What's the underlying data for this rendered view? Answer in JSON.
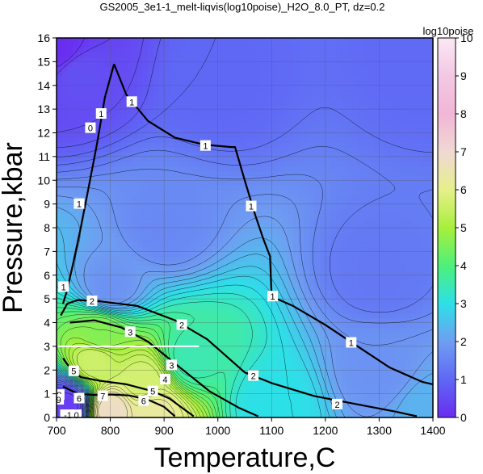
{
  "chart_data": {
    "type": "heatmap",
    "title": "GS2005_3e1-1_melt-liqvis(log10poise)_H2O_8.0_PT, dz=0.2",
    "xlabel": "Temperature,C",
    "ylabel": "Pressure,kbar",
    "xlim": [
      700,
      1400
    ],
    "ylim": [
      0,
      16
    ],
    "x_ticks": [
      "700",
      "800",
      "900",
      "1000",
      "1100",
      "1200",
      "1300",
      "1400"
    ],
    "y_ticks": [
      "0",
      "1",
      "2",
      "3",
      "4",
      "5",
      "6",
      "7",
      "8",
      "9",
      "10",
      "11",
      "12",
      "13",
      "14",
      "15",
      "16"
    ],
    "grid": true,
    "colorbar": {
      "label": "log10poise",
      "range": [
        0,
        10
      ],
      "ticks": [
        "0",
        "1",
        "2",
        "3",
        "4",
        "5",
        "6",
        "7",
        "8",
        "9",
        "10"
      ],
      "colors": [
        "#6a2cf0",
        "#5f68f5",
        "#6f9ef2",
        "#2de0e8",
        "#4ef07a",
        "#a8ef3c",
        "#e6f08a",
        "#f0d8d4",
        "#f2b6d6",
        "#f3c8e4",
        "#fbe8f4"
      ]
    },
    "contour_labels": [
      {
        "text": "0",
        "x": 763,
        "y": 12.2
      },
      {
        "text": "1",
        "x": 783,
        "y": 12.8
      },
      {
        "text": "1",
        "x": 840,
        "y": 13.3
      },
      {
        "text": "1",
        "x": 977,
        "y": 11.45
      },
      {
        "text": "1",
        "x": 1062,
        "y": 8.9
      },
      {
        "text": "1",
        "x": 1102,
        "y": 5.1
      },
      {
        "text": "1",
        "x": 1248,
        "y": 3.15
      },
      {
        "text": "1",
        "x": 742,
        "y": 9.0
      },
      {
        "text": "1",
        "x": 713,
        "y": 5.5
      },
      {
        "text": "2",
        "x": 766,
        "y": 4.9
      },
      {
        "text": "2",
        "x": 933,
        "y": 3.9
      },
      {
        "text": "2",
        "x": 1066,
        "y": 1.75
      },
      {
        "text": "2",
        "x": 1222,
        "y": 0.55
      },
      {
        "text": "3",
        "x": 837,
        "y": 3.6
      },
      {
        "text": "3",
        "x": 914,
        "y": 2.2
      },
      {
        "text": "4",
        "x": 902,
        "y": 1.6
      },
      {
        "text": "5",
        "x": 732,
        "y": 1.95
      },
      {
        "text": "5",
        "x": 879,
        "y": 1.1
      },
      {
        "text": "6",
        "x": 742,
        "y": 0.8
      },
      {
        "text": "6",
        "x": 862,
        "y": 0.7
      },
      {
        "text": "7",
        "x": 786,
        "y": 0.9
      },
      {
        "text": "8",
        "x": 705,
        "y": 0.95
      },
      {
        "text": "9",
        "x": 704,
        "y": 0.75
      },
      {
        "text": "-1",
        "x": 721,
        "y": 0.1
      },
      {
        "text": "0",
        "x": 737,
        "y": 0.1
      }
    ],
    "thick_contours": [
      {
        "level": 1,
        "points": [
          [
            807,
            14.9
          ],
          [
            790,
            13.5
          ],
          [
            775,
            11.5
          ],
          [
            758,
            9.5
          ],
          [
            745,
            8
          ],
          [
            731,
            6.5
          ],
          [
            719,
            5.3
          ],
          [
            712,
            4.8
          ]
        ]
      },
      {
        "level": 1,
        "points": [
          [
            807,
            14.9
          ],
          [
            830,
            13.6
          ],
          [
            870,
            12.5
          ],
          [
            920,
            11.8
          ],
          [
            975,
            11.5
          ],
          [
            1025,
            11.4
          ],
          [
            1032,
            11.4
          ],
          [
            1050,
            10
          ],
          [
            1070,
            8.5
          ],
          [
            1085,
            7.5
          ],
          [
            1097,
            6.8
          ],
          [
            1100,
            5.1
          ],
          [
            1140,
            4.7
          ],
          [
            1200,
            3.9
          ],
          [
            1260,
            3.0
          ],
          [
            1320,
            2.1
          ],
          [
            1380,
            1.5
          ],
          [
            1400,
            1.4
          ]
        ]
      },
      {
        "level": 2,
        "points": [
          [
            708,
            4.3
          ],
          [
            720,
            4.8
          ],
          [
            740,
            4.95
          ],
          [
            780,
            4.9
          ],
          [
            850,
            4.7
          ],
          [
            920,
            4.1
          ],
          [
            980,
            3.3
          ],
          [
            1050,
            1.9
          ],
          [
            1100,
            1.45
          ],
          [
            1180,
            0.9
          ],
          [
            1260,
            0.55
          ],
          [
            1330,
            0.25
          ],
          [
            1370,
            0.05
          ]
        ]
      },
      {
        "level": 3,
        "points": [
          [
            725,
            4.0
          ],
          [
            770,
            4.1
          ],
          [
            820,
            3.8
          ],
          [
            870,
            3.2
          ],
          [
            930,
            2.1
          ],
          [
            985,
            1.1
          ],
          [
            1040,
            0.4
          ],
          [
            1075,
            0.05
          ]
        ]
      },
      {
        "level": 5,
        "points": [
          [
            712,
            2.5
          ],
          [
            728,
            2.0
          ],
          [
            745,
            1.7
          ],
          [
            780,
            1.55
          ],
          [
            830,
            1.4
          ],
          [
            880,
            1.1
          ],
          [
            910,
            0.8
          ],
          [
            940,
            0.3
          ],
          [
            955,
            0.05
          ]
        ]
      },
      {
        "level": 7,
        "points": [
          [
            712,
            1.3
          ],
          [
            740,
            1.0
          ],
          [
            770,
            0.95
          ],
          [
            800,
            0.97
          ],
          [
            835,
            0.93
          ],
          [
            870,
            0.75
          ],
          [
            900,
            0.45
          ],
          [
            920,
            0.05
          ]
        ]
      }
    ],
    "field_anchors": [
      {
        "x": 705,
        "y": 15.5,
        "value": 0.05
      },
      {
        "x": 740,
        "y": 14.5,
        "value": 0.6
      },
      {
        "x": 1000,
        "y": 14.0,
        "value": 1.0
      },
      {
        "x": 1380,
        "y": 15.0,
        "value": 1.05
      },
      {
        "x": 900,
        "y": 8.0,
        "value": 1.6
      },
      {
        "x": 1300,
        "y": 6.0,
        "value": 1.3
      },
      {
        "x": 800,
        "y": 5.5,
        "value": 1.8
      },
      {
        "x": 1300,
        "y": 2.0,
        "value": 1.8
      },
      {
        "x": 1390,
        "y": 0.3,
        "value": 2.3
      },
      {
        "x": 1100,
        "y": 0.5,
        "value": 3.0
      },
      {
        "x": 950,
        "y": 2.5,
        "value": 3.5
      },
      {
        "x": 780,
        "y": 3.5,
        "value": 4.6
      },
      {
        "x": 770,
        "y": 2.4,
        "value": 5.6
      },
      {
        "x": 860,
        "y": 1.5,
        "value": 5.7
      },
      {
        "x": 800,
        "y": 0.3,
        "value": 6.8
      },
      {
        "x": 880,
        "y": 0.2,
        "value": 6.3
      },
      {
        "x": 702,
        "y": 0.15,
        "value": 0.4
      },
      {
        "x": 720,
        "y": 0.5,
        "value": 0.3
      }
    ],
    "overlay_line": {
      "y": 3.0,
      "x_start": 703,
      "x_end": 965,
      "color": "#ffffff"
    }
  }
}
